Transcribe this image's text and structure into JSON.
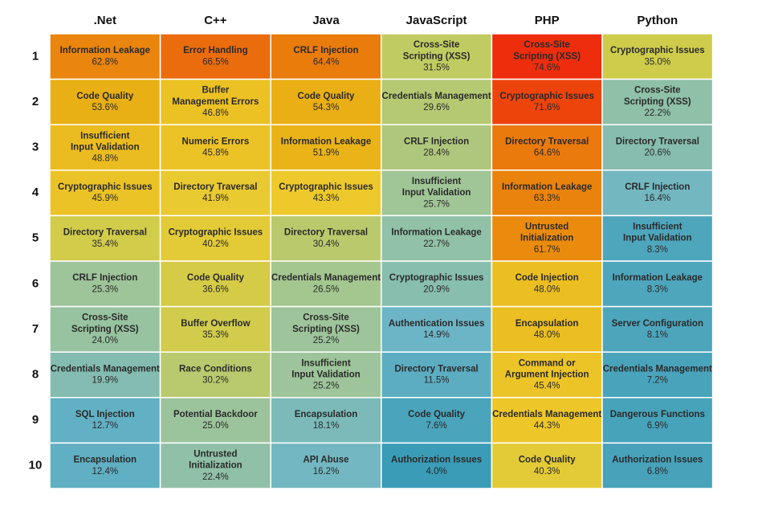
{
  "chart_data": {
    "type": "heatmap",
    "columns": [
      ".Net",
      "C++",
      "Java",
      "JavaScript",
      "PHP",
      "Python"
    ],
    "rows": [
      "1",
      "2",
      "3",
      "4",
      "5",
      "6",
      "7",
      "8",
      "9",
      "10"
    ],
    "cells": [
      [
        {
          "label": "Information Leakage",
          "value": 62.8,
          "display": "62.8%"
        },
        {
          "label": "Code Quality",
          "value": 53.6,
          "display": "53.6%"
        },
        {
          "label": "Insufficient Input Validation",
          "value": 48.8,
          "display": "48.8%"
        },
        {
          "label": "Cryptographic Issues",
          "value": 45.9,
          "display": "45.9%"
        },
        {
          "label": "Directory Traversal",
          "value": 35.4,
          "display": "35.4%"
        },
        {
          "label": "CRLF Injection",
          "value": 25.3,
          "display": "25.3%"
        },
        {
          "label": "Cross-Site Scripting (XSS)",
          "value": 24.0,
          "display": "24.0%"
        },
        {
          "label": "Credentials Management",
          "value": 19.9,
          "display": "19.9%"
        },
        {
          "label": "SQL Injection",
          "value": 12.7,
          "display": "12.7%"
        },
        {
          "label": "Encapsulation",
          "value": 12.4,
          "display": "12.4%"
        }
      ],
      [
        {
          "label": "Error Handling",
          "value": 66.5,
          "display": "66.5%"
        },
        {
          "label": "Buffer Management Errors",
          "value": 46.8,
          "display": "46.8%"
        },
        {
          "label": "Numeric Errors",
          "value": 45.8,
          "display": "45.8%"
        },
        {
          "label": "Directory Traversal",
          "value": 41.9,
          "display": "41.9%"
        },
        {
          "label": "Cryptographic Issues",
          "value": 40.2,
          "display": "40.2%"
        },
        {
          "label": "Code Quality",
          "value": 36.6,
          "display": "36.6%"
        },
        {
          "label": "Buffer Overflow",
          "value": 35.3,
          "display": "35.3%"
        },
        {
          "label": "Race Conditions",
          "value": 30.2,
          "display": "30.2%"
        },
        {
          "label": "Potential Backdoor",
          "value": 25.0,
          "display": "25.0%"
        },
        {
          "label": "Untrusted Initialization",
          "value": 22.4,
          "display": "22.4%"
        }
      ],
      [
        {
          "label": "CRLF Injection",
          "value": 64.4,
          "display": "64.4%"
        },
        {
          "label": "Code Quality",
          "value": 54.3,
          "display": "54.3%"
        },
        {
          "label": "Information Leakage",
          "value": 51.9,
          "display": "51.9%"
        },
        {
          "label": "Cryptographic Issues",
          "value": 43.3,
          "display": "43.3%"
        },
        {
          "label": "Directory Traversal",
          "value": 30.4,
          "display": "30.4%"
        },
        {
          "label": "Credentials Management",
          "value": 26.5,
          "display": "26.5%"
        },
        {
          "label": "Cross-Site Scripting (XSS)",
          "value": 25.2,
          "display": "25.2%"
        },
        {
          "label": "Insufficient Input Validation",
          "value": 25.2,
          "display": "25.2%"
        },
        {
          "label": "Encapsulation",
          "value": 18.1,
          "display": "18.1%"
        },
        {
          "label": "API Abuse",
          "value": 16.2,
          "display": "16.2%"
        }
      ],
      [
        {
          "label": "Cross-Site Scripting (XSS)",
          "value": 31.5,
          "display": "31.5%"
        },
        {
          "label": "Credentials Management",
          "value": 29.6,
          "display": "29.6%"
        },
        {
          "label": "CRLF Injection",
          "value": 28.4,
          "display": "28.4%"
        },
        {
          "label": "Insufficient Input Validation",
          "value": 25.7,
          "display": "25.7%"
        },
        {
          "label": "Information Leakage",
          "value": 22.7,
          "display": "22.7%"
        },
        {
          "label": "Cryptographic Issues",
          "value": 20.9,
          "display": "20.9%"
        },
        {
          "label": "Authentication Issues",
          "value": 14.9,
          "display": "14.9%"
        },
        {
          "label": "Directory Traversal",
          "value": 11.5,
          "display": "11.5%"
        },
        {
          "label": "Code Quality",
          "value": 7.6,
          "display": "7.6%"
        },
        {
          "label": "Authorization Issues",
          "value": 4.0,
          "display": "4.0%"
        }
      ],
      [
        {
          "label": "Cross-Site Scripting (XSS)",
          "value": 74.6,
          "display": "74.6%"
        },
        {
          "label": "Cryptographic Issues",
          "value": 71.6,
          "display": "71.6%"
        },
        {
          "label": "Directory Traversal",
          "value": 64.6,
          "display": "64.6%"
        },
        {
          "label": "Information Leakage",
          "value": 63.3,
          "display": "63.3%"
        },
        {
          "label": "Untrusted Initialization",
          "value": 61.7,
          "display": "61.7%"
        },
        {
          "label": "Code Injection",
          "value": 48.0,
          "display": "48.0%"
        },
        {
          "label": "Encapsulation",
          "value": 48.0,
          "display": "48.0%"
        },
        {
          "label": "Command or Argument Injection",
          "value": 45.4,
          "display": "45.4%"
        },
        {
          "label": "Credentials Management",
          "value": 44.3,
          "display": "44.3%"
        },
        {
          "label": "Code Quality",
          "value": 40.3,
          "display": "40.3%"
        }
      ],
      [
        {
          "label": "Cryptographic Issues",
          "value": 35.0,
          "display": "35.0%"
        },
        {
          "label": "Cross-Site Scripting (XSS)",
          "value": 22.2,
          "display": "22.2%"
        },
        {
          "label": "Directory Traversal",
          "value": 20.6,
          "display": "20.6%"
        },
        {
          "label": "CRLF Injection",
          "value": 16.4,
          "display": "16.4%"
        },
        {
          "label": "Insufficient Input Validation",
          "value": 8.3,
          "display": "8.3%"
        },
        {
          "label": "Information Leakage",
          "value": 8.3,
          "display": "8.3%"
        },
        {
          "label": "Server Configuration",
          "value": 8.1,
          "display": "8.1%"
        },
        {
          "label": "Credentials Management",
          "value": 7.2,
          "display": "7.2%"
        },
        {
          "label": "Dangerous Functions",
          "value": 6.9,
          "display": "6.9%"
        },
        {
          "label": "Authorization Issues",
          "value": 6.8,
          "display": "6.8%"
        }
      ]
    ],
    "color_scale": {
      "stops": [
        {
          "value": 4,
          "color": "#3a9cb6"
        },
        {
          "value": 15,
          "color": "#6cb5c6"
        },
        {
          "value": 25,
          "color": "#9cc49c"
        },
        {
          "value": 33,
          "color": "#c8cc54"
        },
        {
          "value": 43,
          "color": "#edca2c"
        },
        {
          "value": 55,
          "color": "#e9ad12"
        },
        {
          "value": 64,
          "color": "#ea7f0c"
        },
        {
          "value": 75,
          "color": "#ee2a0c"
        }
      ]
    },
    "title": "",
    "xlabel": "",
    "ylabel": ""
  }
}
